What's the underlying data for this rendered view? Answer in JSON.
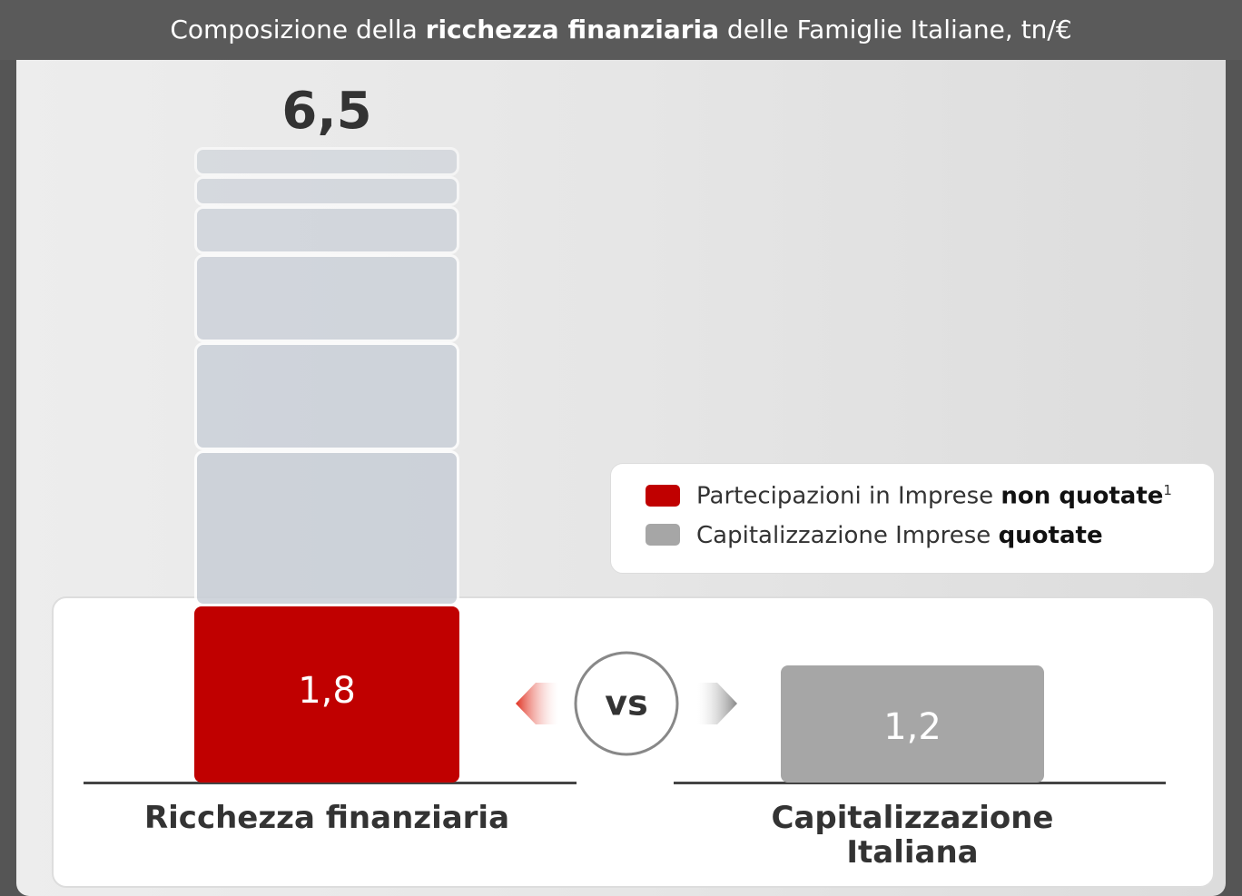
{
  "chart_data": {
    "type": "stacked_bar",
    "title": [
      "Composizione della ",
      "ricchezza finanziaria",
      " delle Famiglie Italiane, tn/€"
    ],
    "categories": [
      "Ricchezza finanziaria",
      "Capitalizzazione Italiana"
    ],
    "total": 6.5,
    "total_label": "6,5",
    "ylim": [
      0,
      6.5
    ],
    "series": [
      {
        "name": [
          "Partecipazioni in Imprese ",
          "non quotate"
        ],
        "footnote": "1",
        "color": "#c00000",
        "values": [
          1.8,
          null
        ],
        "value_labels": [
          "1,8",
          null
        ]
      },
      {
        "name": [
          "Capitalizzazione Imprese ",
          "quotate"
        ],
        "color": "#a6a6a6",
        "values": [
          null,
          1.2
        ],
        "value_labels": [
          null,
          "1,2"
        ]
      }
    ],
    "stack": {
      "color": "#c8ced7",
      "values": [
        1.6,
        1.1,
        0.9,
        0.5,
        0.3,
        0.3
      ]
    },
    "vs_label": "vs"
  }
}
